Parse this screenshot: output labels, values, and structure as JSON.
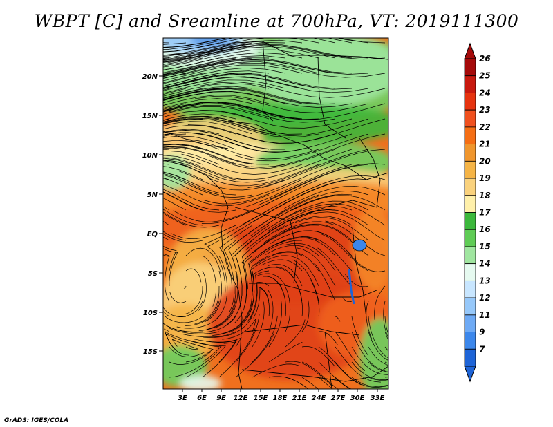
{
  "title": "WBPT [C] and Sreamline at 700hPa, VT: 2019111300",
  "credit": "GrADS: IGES/COLA",
  "lat_ticks": [
    "20N",
    "15N",
    "10N",
    "5N",
    "EQ",
    "5S",
    "10S",
    "15S"
  ],
  "lon_ticks": [
    "3E",
    "6E",
    "9E",
    "12E",
    "15E",
    "18E",
    "21E",
    "24E",
    "27E",
    "30E",
    "33E"
  ],
  "colorbar": {
    "labels": [
      "26",
      "25",
      "24",
      "23",
      "22",
      "21",
      "20",
      "19",
      "18",
      "17",
      "16",
      "15",
      "14",
      "13",
      "12",
      "11",
      "9",
      "7"
    ],
    "colors": [
      "#a50a0a",
      "#c8190f",
      "#e6330f",
      "#f0501e",
      "#f56e14",
      "#f0962d",
      "#f5b446",
      "#fad27d",
      "#fff0aa",
      "#3cb83c",
      "#5fcc55",
      "#a0e6a0",
      "#e6faf0",
      "#c8e6ff",
      "#96c8fa",
      "#6eaaf5",
      "#3c87eb",
      "#1e64d7"
    ]
  },
  "map": {
    "fill_colors": {
      "very_hot": "#e0401a",
      "hot": "#f0601e",
      "warm": "#f58a28",
      "mid": "#f5b446",
      "mild": "#fad27d",
      "pale": "#fff0aa",
      "green_dark": "#3cb83c",
      "green": "#6cd060",
      "green_light": "#a0e6a0",
      "cool": "#e6faf0",
      "cold": "#96c8fa",
      "colder": "#5a9ae8"
    }
  }
}
